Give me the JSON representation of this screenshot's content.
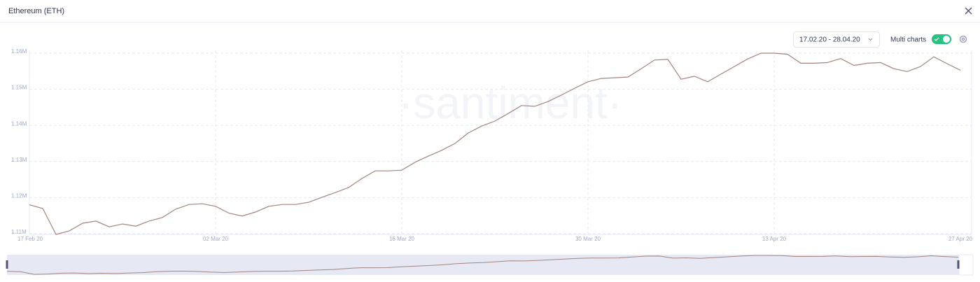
{
  "header": {
    "title": "Ethereum (ETH)"
  },
  "controls": {
    "date_range": "17.02.20 - 28.04.20",
    "multi_charts": "Multi charts",
    "multi_charts_on": true
  },
  "chart_data": {
    "type": "line",
    "watermark": "·santiment·",
    "x": [
      "17 Feb 20",
      "18 Feb 20",
      "19 Feb 20",
      "20 Feb 20",
      "21 Feb 20",
      "22 Feb 20",
      "23 Feb 20",
      "24 Feb 20",
      "25 Feb 20",
      "26 Feb 20",
      "27 Feb 20",
      "28 Feb 20",
      "29 Feb 20",
      "01 Mar 20",
      "02 Mar 20",
      "03 Mar 20",
      "04 Mar 20",
      "05 Mar 20",
      "06 Mar 20",
      "07 Mar 20",
      "08 Mar 20",
      "09 Mar 20",
      "10 Mar 20",
      "11 Mar 20",
      "12 Mar 20",
      "13 Mar 20",
      "14 Mar 20",
      "15 Mar 20",
      "16 Mar 20",
      "17 Mar 20",
      "18 Mar 20",
      "19 Mar 20",
      "20 Mar 20",
      "21 Mar 20",
      "22 Mar 20",
      "23 Mar 20",
      "24 Mar 20",
      "25 Mar 20",
      "26 Mar 20",
      "27 Mar 20",
      "28 Mar 20",
      "29 Mar 20",
      "30 Mar 20",
      "31 Mar 20",
      "01 Apr 20",
      "02 Apr 20",
      "03 Apr 20",
      "04 Apr 20",
      "05 Apr 20",
      "06 Apr 20",
      "07 Apr 20",
      "08 Apr 20",
      "09 Apr 20",
      "10 Apr 20",
      "11 Apr 20",
      "12 Apr 20",
      "13 Apr 20",
      "14 Apr 20",
      "15 Apr 20",
      "16 Apr 20",
      "17 Apr 20",
      "18 Apr 20",
      "19 Apr 20",
      "20 Apr 20",
      "21 Apr 20",
      "22 Apr 20",
      "23 Apr 20",
      "24 Apr 20",
      "25 Apr 20",
      "26 Apr 20",
      "27 Apr 20"
    ],
    "series": [
      {
        "name": "Ethereum (ETH)",
        "color": "#a3847f",
        "values": [
          1118000,
          1117000,
          1109800,
          1110800,
          1112900,
          1113500,
          1111900,
          1112700,
          1112100,
          1113500,
          1114500,
          1116800,
          1118100,
          1118300,
          1117600,
          1115700,
          1114900,
          1116000,
          1117600,
          1118100,
          1118100,
          1118700,
          1120100,
          1121400,
          1122800,
          1125300,
          1127400,
          1127400,
          1127600,
          1129800,
          1131500,
          1133100,
          1135000,
          1137900,
          1139800,
          1141200,
          1143300,
          1145500,
          1145300,
          1146600,
          1148400,
          1150300,
          1152100,
          1153000,
          1153200,
          1153400,
          1155700,
          1158100,
          1158300,
          1152800,
          1153600,
          1152100,
          1154200,
          1156300,
          1158400,
          1160000,
          1160000,
          1159700,
          1157200,
          1157200,
          1157400,
          1158500,
          1156600,
          1157200,
          1157400,
          1155700,
          1154900,
          1156300,
          1159000,
          1157100,
          1155300
        ]
      }
    ],
    "xticks": [
      "17 Feb 20",
      "02 Mar 20",
      "16 Mar 20",
      "30 Mar 20",
      "13 Apr 20",
      "27 Apr 20"
    ],
    "ylim": [
      1110000,
      1160000
    ],
    "yticks": [
      {
        "value": 1110000,
        "label": "1.11M"
      },
      {
        "value": 1120000,
        "label": "1.12M"
      },
      {
        "value": 1130000,
        "label": "1.13M"
      },
      {
        "value": 1140000,
        "label": "1.14M"
      },
      {
        "value": 1150000,
        "label": "1.15M"
      },
      {
        "value": 1160000,
        "label": "1.16M"
      }
    ],
    "grid": true
  }
}
